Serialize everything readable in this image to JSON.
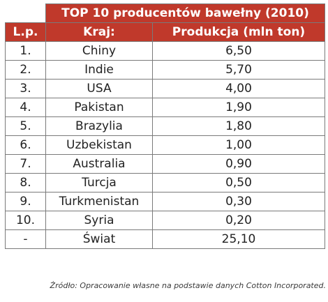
{
  "table": {
    "title": "TOP 10 producentów bawełny (2010)",
    "headers": [
      "L.p.",
      "Kraj:",
      "Produkcja (mln ton)"
    ],
    "rows": [
      [
        "1.",
        "Chiny",
        "6,50"
      ],
      [
        "2.",
        "Indie",
        "5,70"
      ],
      [
        "3.",
        "USA",
        "4,00"
      ],
      [
        "4.",
        "Pakistan",
        "1,90"
      ],
      [
        "5.",
        "Brazylia",
        "1,80"
      ],
      [
        "6.",
        "Uzbekistan",
        "1,00"
      ],
      [
        "7.",
        "Australia",
        "0,90"
      ],
      [
        "8.",
        "Turcja",
        "0,50"
      ],
      [
        "9.",
        "Turkmenistan",
        "0,30"
      ],
      [
        "10.",
        "Syria",
        "0,20"
      ],
      [
        "-",
        "Świat",
        "25,10"
      ]
    ]
  },
  "source": "Źródło: Opracowanie własne na podstawie danych Cotton Incorporated.",
  "colors": {
    "header_bg": "#c0392b",
    "header_text": "#ffffff",
    "border": "#7a7a7a"
  }
}
